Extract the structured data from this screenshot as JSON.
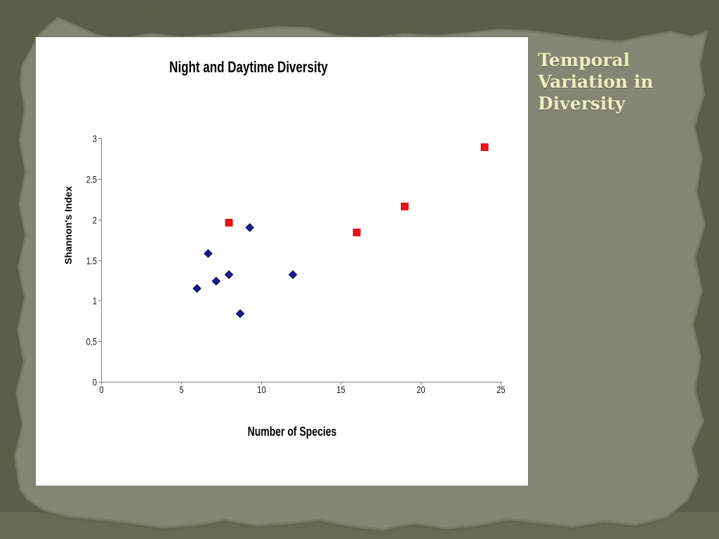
{
  "slide": {
    "title": "Temporal Variation in Diversity",
    "title_lines": [
      "Temporal",
      "Variation in",
      "Diversity"
    ],
    "colors": {
      "background_dark": "#565944",
      "paper": "#8e917d",
      "title_text": "#ecedc2",
      "panel_bg": "#ffffff",
      "panel_border": "#7a7d74"
    }
  },
  "chart_data": {
    "type": "scatter",
    "title": "Night and Daytime Diversity",
    "xlabel": "Number of Species",
    "ylabel": "Shannon's Index",
    "xlim": [
      0,
      25
    ],
    "ylim": [
      0,
      3
    ],
    "x_ticks": [
      0,
      5,
      10,
      15,
      20,
      25
    ],
    "x_tick_labels": [
      "0",
      "5",
      "10",
      "15",
      "20",
      "25"
    ],
    "y_ticks": [
      0,
      0.5,
      1,
      1.5,
      2,
      2.5,
      3
    ],
    "y_tick_labels": [
      "0",
      "0.5",
      "1",
      "1.5",
      "2",
      "2.5",
      "3"
    ],
    "grid": false,
    "legend": "none",
    "axis_color": "#808080",
    "series": [
      {
        "name": "blue-diamonds",
        "marker": "diamond",
        "color": "#1a1a8c",
        "stroke": "#000050",
        "points": [
          [
            6,
            1.15
          ],
          [
            6.7,
            1.58
          ],
          [
            7.2,
            1.24
          ],
          [
            8,
            1.32
          ],
          [
            8.7,
            0.84
          ],
          [
            9.3,
            1.9
          ],
          [
            12,
            1.32
          ]
        ]
      },
      {
        "name": "red-squares",
        "marker": "square",
        "color": "#ee1111",
        "stroke": "#c00000",
        "points": [
          [
            8,
            1.96
          ],
          [
            16,
            1.84
          ],
          [
            19,
            2.16
          ],
          [
            24,
            2.89
          ]
        ]
      }
    ]
  }
}
